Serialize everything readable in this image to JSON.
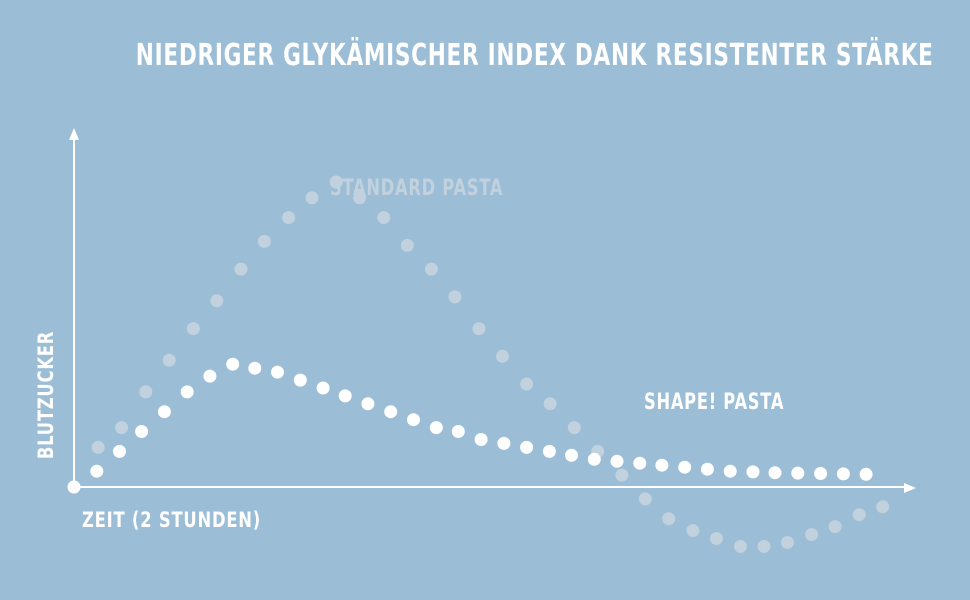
{
  "title": "NIEDRIGER GLYKÄMISCHER INDEX DANK RESISTENTER STÄRKE",
  "colors": {
    "background": "#9bbdd6",
    "standard_series": "#c1d1dd",
    "shape_series": "#ffffff",
    "axis": "#ffffff"
  },
  "chart_data": {
    "type": "scatter",
    "title": "NIEDRIGER GLYKÄMISCHER INDEX DANK RESISTENTER STÄRKE",
    "xlabel": "ZEIT (2 STUNDEN)",
    "ylabel": "BLUTZUCKER",
    "grid": false,
    "legend": "inline labels",
    "xlim": [
      0,
      120
    ],
    "ylim": [
      -15,
      100
    ],
    "series": [
      {
        "name": "STANDARD PASTA",
        "x": [
          0,
          3.5,
          6.9,
          10.4,
          13.8,
          17.3,
          20.7,
          24.2,
          27.6,
          31.1,
          34.5,
          38.0,
          41.4,
          44.9,
          48.3,
          51.8,
          55.2,
          58.7,
          62.1,
          65.6,
          69.0,
          72.5,
          75.9,
          79.4,
          82.8,
          86.2,
          89.7,
          93.1,
          96.6,
          100.0,
          103.4,
          106.9,
          110.3,
          113.8,
          117.2
        ],
        "y": [
          0,
          10,
          15,
          24,
          32,
          40,
          47,
          55,
          62,
          68,
          73,
          77,
          73,
          68,
          61,
          55,
          48,
          40,
          33,
          26,
          21,
          15,
          9,
          3,
          -3,
          -8,
          -11,
          -13,
          -15,
          -15,
          -14,
          -12,
          -10,
          -7,
          -5
        ]
      },
      {
        "name": "SHAPE! PASTA",
        "x": [
          0,
          3.3,
          6.6,
          9.8,
          13.1,
          16.4,
          19.7,
          23.0,
          26.2,
          29.5,
          32.8,
          36.1,
          39.3,
          42.6,
          45.9,
          49.2,
          52.5,
          55.7,
          59.0,
          62.3,
          65.6,
          68.9,
          72.1,
          75.4,
          78.7,
          82.0,
          85.2,
          88.5,
          91.8,
          95.1,
          98.4,
          101.6,
          104.9,
          108.2,
          111.5,
          114.8
        ],
        "y": [
          0,
          4,
          9,
          14,
          19,
          24,
          28,
          31,
          30,
          29,
          27,
          25,
          23,
          21,
          19,
          17,
          15,
          14,
          12,
          11,
          10,
          9,
          8,
          7,
          6.5,
          6,
          5.5,
          5,
          4.5,
          4,
          3.8,
          3.6,
          3.5,
          3.4,
          3.3,
          3.2
        ]
      }
    ]
  }
}
